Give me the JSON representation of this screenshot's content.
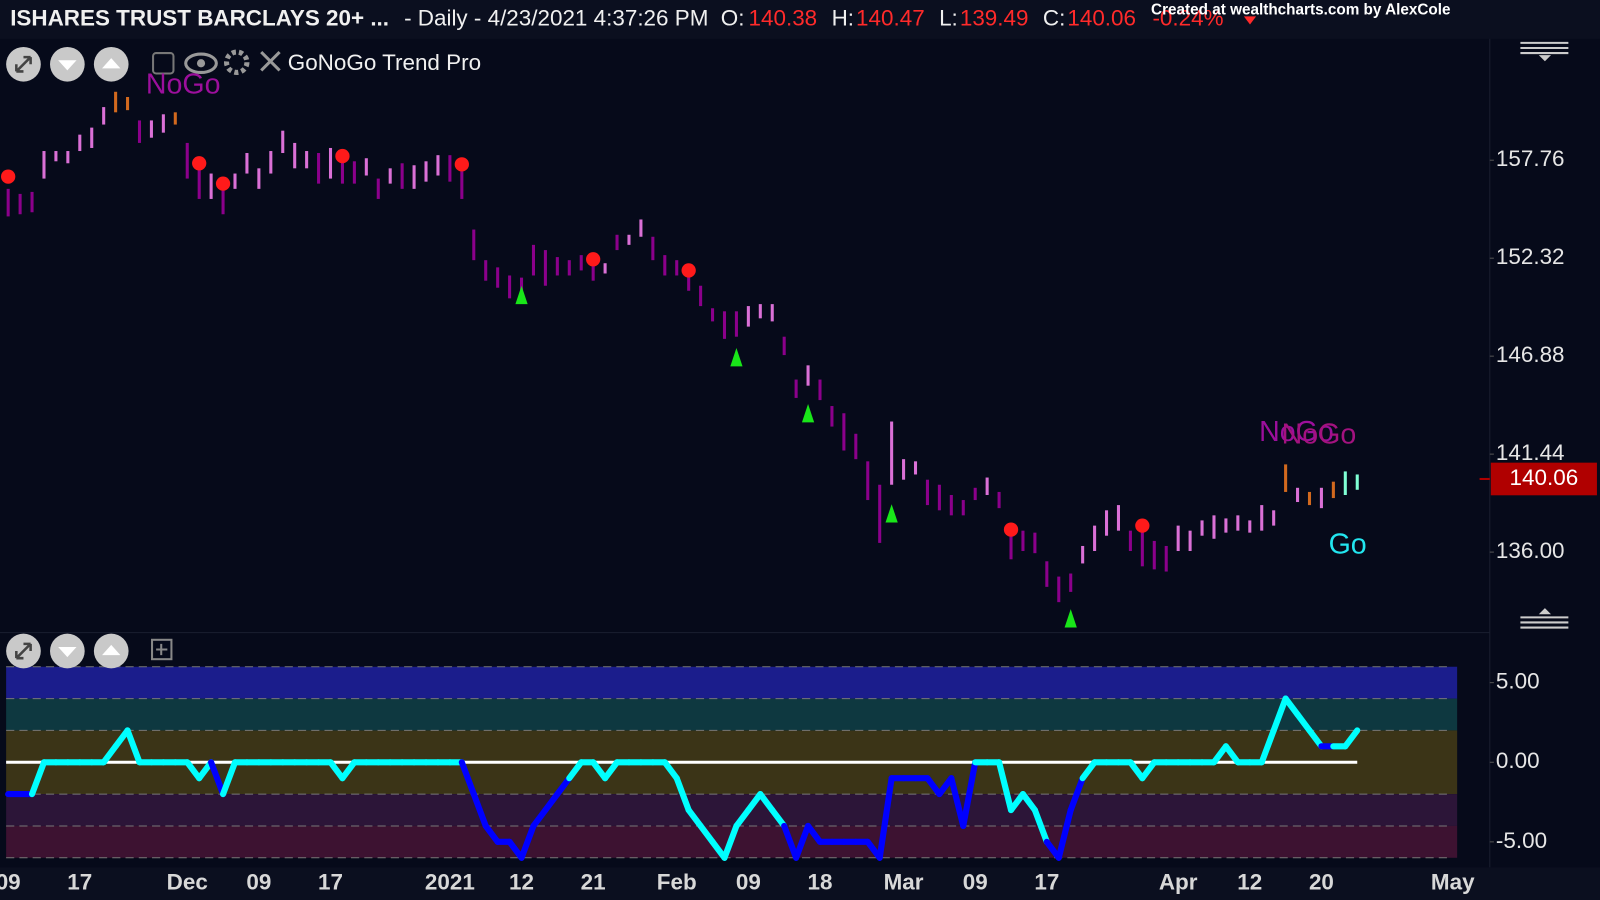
{
  "header": {
    "symbol": "ISHARES TRUST BARCLAYS 20+ ...",
    "info": "- Daily - 4/23/2021 4:37:26 PM",
    "ohlc": [
      {
        "label": "O:",
        "value": 140.38
      },
      {
        "label": "H:",
        "value": 140.47
      },
      {
        "label": "L:",
        "value": 139.49
      },
      {
        "label": "C:",
        "value": 140.06
      }
    ],
    "change": "-0.24%",
    "credit": "Created at wealthcharts.com by AlexCole",
    "indicator": "GoNoGo Trend Pro"
  },
  "chart_data": [
    {
      "type": "ohlc",
      "categories": [
        "09",
        null,
        null,
        null,
        null,
        null,
        "17",
        null,
        null,
        null,
        null,
        null,
        null,
        null,
        null,
        "Dec",
        null,
        null,
        null,
        null,
        null,
        "09",
        null,
        null,
        null,
        null,
        null,
        "17",
        null,
        null,
        null,
        null,
        null,
        null,
        null,
        null,
        null,
        "2021",
        null,
        null,
        null,
        null,
        null,
        "12",
        null,
        null,
        null,
        null,
        null,
        "21",
        null,
        null,
        null,
        null,
        null,
        null,
        "Feb",
        null,
        null,
        null,
        null,
        null,
        "09",
        null,
        null,
        null,
        null,
        null,
        "18",
        null,
        null,
        null,
        null,
        null,
        null,
        "Mar",
        null,
        null,
        null,
        null,
        null,
        "09",
        null,
        null,
        null,
        null,
        null,
        "17",
        null,
        null,
        null,
        null,
        null,
        null,
        null,
        null,
        null,
        null,
        "Apr",
        null,
        null,
        null,
        null,
        null,
        "12",
        null,
        null,
        null,
        null,
        null,
        "20",
        null,
        null,
        null,
        null,
        null,
        null,
        null,
        null,
        null,
        null,
        "May"
      ],
      "high": [
        156.17,
        155.89,
        156.0,
        158.27,
        158.27,
        158.27,
        159.18,
        159.57,
        160.71,
        161.56,
        161.27,
        159.97,
        159.97,
        160.31,
        160.42,
        158.72,
        157.7,
        157.02,
        156.46,
        157.02,
        158.16,
        157.31,
        158.27,
        159.4,
        158.72,
        158.27,
        158.16,
        158.44,
        158.27,
        157.7,
        157.87,
        156.74,
        157.31,
        157.59,
        157.48,
        157.7,
        158.04,
        158.04,
        157.14,
        153.91,
        152.21,
        151.81,
        151.36,
        151.24,
        153.06,
        152.77,
        152.38,
        152.21,
        152.49,
        152.49,
        152.04,
        153.62,
        153.62,
        154.47,
        153.51,
        152.49,
        152.21,
        151.81,
        150.79,
        149.54,
        149.37,
        149.37,
        149.66,
        149.77,
        149.77,
        147.96,
        145.58,
        146.37,
        145.58,
        144.11,
        143.71,
        142.57,
        141.04,
        139.74,
        143.25,
        141.16,
        141.04,
        140.02,
        139.74,
        139.17,
        138.89,
        139.57,
        140.14,
        139.34,
        136.91,
        137.19,
        137.08,
        135.49,
        134.64,
        134.81,
        136.34,
        137.47,
        138.32,
        138.61,
        137.19,
        137.19,
        136.62,
        136.34,
        137.47,
        137.19,
        137.76,
        138.04,
        137.87,
        138.04,
        137.76,
        138.61,
        138.32,
        140.87,
        139.57,
        139.34,
        139.57,
        139.91,
        140.48,
        140.31,
        null,
        null,
        null,
        null,
        null,
        null,
        null,
        null
      ],
      "low": [
        154.64,
        154.76,
        154.87,
        156.74,
        157.7,
        157.59,
        158.27,
        158.44,
        159.74,
        160.42,
        160.54,
        158.72,
        159.01,
        159.29,
        159.74,
        156.74,
        155.61,
        155.61,
        154.76,
        156.17,
        157.02,
        156.17,
        157.02,
        158.16,
        157.31,
        157.31,
        156.46,
        156.74,
        156.46,
        156.46,
        156.91,
        155.61,
        156.46,
        156.17,
        156.17,
        156.57,
        156.91,
        156.57,
        155.61,
        152.21,
        151.07,
        150.68,
        150.09,
        150.09,
        151.36,
        150.79,
        151.36,
        151.36,
        151.64,
        151.07,
        151.47,
        152.77,
        153.06,
        153.51,
        152.21,
        151.36,
        151.36,
        150.51,
        149.66,
        148.81,
        147.84,
        147.96,
        148.52,
        148.98,
        148.81,
        146.94,
        144.56,
        145.24,
        144.44,
        142.97,
        141.64,
        141.16,
        138.89,
        136.51,
        139.74,
        140.02,
        140.31,
        138.61,
        138.32,
        138.04,
        138.04,
        138.89,
        139.17,
        138.44,
        135.6,
        136.06,
        135.94,
        134.07,
        133.22,
        133.79,
        135.37,
        136.06,
        136.91,
        137.19,
        136.06,
        135.21,
        135.04,
        134.92,
        136.06,
        136.06,
        136.91,
        136.74,
        137.08,
        137.19,
        137.08,
        137.19,
        137.47,
        139.34,
        138.78,
        138.61,
        138.44,
        139.0,
        139.17,
        139.46,
        null,
        null,
        null,
        null,
        null,
        null,
        null,
        null
      ],
      "colors": [
        "darkmagenta",
        "darkmagenta",
        "darkmagenta",
        "orchid",
        "orchid",
        "orchid",
        "orchid",
        "orchid",
        "orchid",
        "chocolate",
        "chocolate",
        "darkmagenta",
        "orchid",
        "orchid",
        "chocolate",
        "darkmagenta",
        "darkmagenta",
        "orchid",
        "darkmagenta",
        "orchid",
        "orchid",
        "orchid",
        "orchid",
        "orchid",
        "orchid",
        "orchid",
        "darkmagenta",
        "orchid",
        "darkmagenta",
        "darkmagenta",
        "orchid",
        "darkmagenta",
        "orchid",
        "darkmagenta",
        "orchid",
        "orchid",
        "orchid",
        "darkmagenta",
        "darkmagenta",
        "darkmagenta",
        "darkmagenta",
        "darkmagenta",
        "darkmagenta",
        "darkmagenta",
        "darkmagenta",
        "darkmagenta",
        "darkmagenta",
        "darkmagenta",
        "darkmagenta",
        "darkmagenta",
        "orchid",
        "darkmagenta",
        "orchid",
        "orchid",
        "darkmagenta",
        "darkmagenta",
        "darkmagenta",
        "darkmagenta",
        "darkmagenta",
        "darkmagenta",
        "darkmagenta",
        "darkmagenta",
        "orchid",
        "orchid",
        "orchid",
        "darkmagenta",
        "darkmagenta",
        "orchid",
        "darkmagenta",
        "darkmagenta",
        "darkmagenta",
        "darkmagenta",
        "darkmagenta",
        "darkmagenta",
        "orchid",
        "orchid",
        "orchid",
        "darkmagenta",
        "darkmagenta",
        "darkmagenta",
        "darkmagenta",
        "darkmagenta",
        "orchid",
        "darkmagenta",
        "darkmagenta",
        "darkmagenta",
        "darkmagenta",
        "darkmagenta",
        "darkmagenta",
        "darkmagenta",
        "orchid",
        "orchid",
        "orchid",
        "orchid",
        "darkmagenta",
        "darkmagenta",
        "darkmagenta",
        "darkmagenta",
        "orchid",
        "orchid",
        "orchid",
        "orchid",
        "orchid",
        "orchid",
        "orchid",
        "orchid",
        "orchid",
        "chocolate",
        "orchid",
        "chocolate",
        "orchid",
        "chocolate",
        "aquamarine",
        "aquamarine",
        null,
        null,
        null,
        null,
        null,
        null,
        null,
        null
      ],
      "nogo_signals": {
        "x": [
          0,
          16,
          18,
          28,
          38,
          49,
          57,
          84,
          95
        ],
        "values": [
          156.85,
          157.59,
          156.46,
          157.99,
          157.53,
          152.26,
          151.64,
          137.25,
          137.47
        ],
        "color": "#ff1a1a"
      },
      "go_signals": {
        "x": [
          43,
          61,
          67,
          74,
          89
        ],
        "values": [
          150.28,
          146.82,
          143.71,
          138.15,
          132.32
        ],
        "color": "#19e619"
      },
      "last_value": 140.06,
      "annotations": [
        {
          "text": "NoGo",
          "color": "#9c0f9c"
        },
        {
          "text": "NoGo",
          "color": "#9c0f9c"
        },
        {
          "text": "NoGo",
          "color": "#a3127f"
        },
        {
          "text": "Go",
          "color": "#22e6f0"
        }
      ],
      "ylim": [
        131.64,
        164.39
      ],
      "yticks": [
        157.76,
        152.32,
        146.88,
        141.44,
        {
          "value": 136,
          "label": "136.00"
        }
      ]
    },
    {
      "type": "oscillator",
      "values": [
        -2,
        -2,
        -2,
        0,
        0,
        0,
        0,
        0,
        0,
        1,
        2,
        0,
        0,
        0,
        0,
        0,
        -1,
        0,
        -2,
        0,
        0,
        0,
        0,
        0,
        0,
        0,
        0,
        0,
        -1,
        0,
        0,
        0,
        0,
        0,
        0,
        0,
        0,
        0,
        0,
        -2,
        -4,
        -5,
        -5,
        -6,
        -4,
        -3,
        -2,
        -1,
        0,
        0,
        -1,
        0,
        0,
        0,
        0,
        0,
        -1,
        -3,
        -4,
        -5,
        -6,
        -4,
        -3,
        -2,
        -3,
        -4,
        -6,
        -4,
        -5,
        -5,
        -5,
        -5,
        -5,
        -6,
        -1,
        -1,
        -1,
        -1,
        -2,
        -1,
        -4,
        0,
        0,
        0,
        -3,
        -2,
        -3,
        -5,
        -6,
        -3,
        -1,
        0,
        0,
        0,
        0,
        -1,
        0,
        0,
        0,
        0,
        0,
        0,
        1,
        0,
        0,
        0,
        2,
        4,
        3,
        2,
        1,
        1,
        1,
        2,
        null,
        null,
        null,
        null,
        null,
        null,
        null,
        null
      ],
      "colors": [
        "blue",
        "blue",
        "blue",
        "aqua",
        "aqua",
        "aqua",
        "aqua",
        "aqua",
        "aqua",
        "aqua",
        "aqua",
        "aqua",
        "aqua",
        "aqua",
        "aqua",
        "aqua",
        "aqua",
        "aqua",
        "blue",
        "aqua",
        "aqua",
        "aqua",
        "aqua",
        "aqua",
        "aqua",
        "aqua",
        "aqua",
        "aqua",
        "aqua",
        "aqua",
        "aqua",
        "aqua",
        "aqua",
        "aqua",
        "aqua",
        "aqua",
        "aqua",
        "aqua",
        "aqua",
        "blue",
        "blue",
        "blue",
        "blue",
        "blue",
        "blue",
        "blue",
        "blue",
        "blue",
        "aqua",
        "aqua",
        "aqua",
        "aqua",
        "aqua",
        "aqua",
        "aqua",
        "aqua",
        "aqua",
        "aqua",
        "aqua",
        "aqua",
        "aqua",
        "aqua",
        "aqua",
        "aqua",
        "aqua",
        "aqua",
        "blue",
        "blue",
        "blue",
        "blue",
        "blue",
        "blue",
        "blue",
        "blue",
        "blue",
        "blue",
        "blue",
        "blue",
        "blue",
        "blue",
        "blue",
        "blue",
        "aqua",
        "aqua",
        "aqua",
        "aqua",
        "aqua",
        "aqua",
        "blue",
        "blue",
        "blue",
        "aqua",
        "aqua",
        "aqua",
        "aqua",
        "aqua",
        "aqua",
        "aqua",
        "aqua",
        "aqua",
        "aqua",
        "aqua",
        "aqua",
        "aqua",
        "aqua",
        "aqua",
        "aqua",
        "aqua",
        "aqua",
        "aqua",
        "aqua",
        "blue",
        "aqua",
        "aqua",
        null,
        null,
        null,
        null,
        null,
        null,
        null,
        null
      ],
      "band_edges": [
        6,
        4,
        2,
        -2,
        -4,
        -6
      ],
      "band_colors": [
        "#1b1d8c",
        "#0e3840",
        "#3b3417",
        "#2c1538",
        "#3d1231"
      ],
      "ylim": [
        -6.6,
        7.82
      ],
      "yticks": [
        {
          "value": 5,
          "label": "5.00"
        },
        {
          "value": 0,
          "label": "0.00"
        },
        {
          "value": -5,
          "label": "-5.00"
        }
      ]
    }
  ]
}
